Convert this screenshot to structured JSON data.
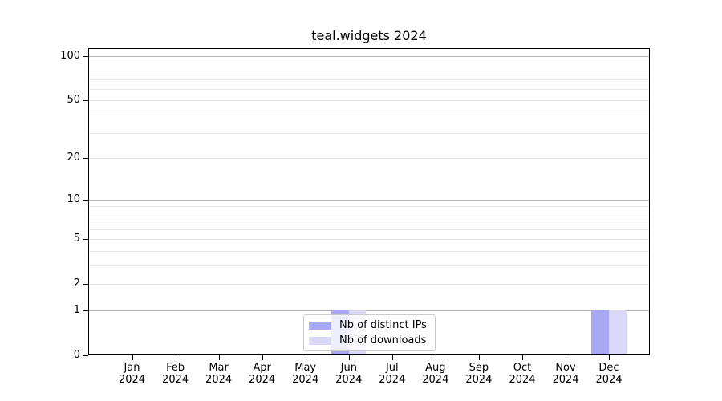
{
  "chart_data": {
    "type": "bar",
    "title": "teal.widgets 2024",
    "categories": [
      "Jan",
      "Feb",
      "Mar",
      "Apr",
      "May",
      "Jun",
      "Jul",
      "Aug",
      "Sep",
      "Oct",
      "Nov",
      "Dec"
    ],
    "year_label": "2024",
    "series": [
      {
        "name": "Nb of distinct IPs",
        "color": "#a8a8f5",
        "values": [
          0,
          0,
          0,
          0,
          0,
          1,
          0,
          0,
          0,
          0,
          0,
          1
        ]
      },
      {
        "name": "Nb of downloads",
        "color": "#d9d9f7",
        "values": [
          0,
          0,
          0,
          0,
          0,
          1,
          0,
          0,
          0,
          0,
          0,
          1
        ]
      }
    ],
    "xlabel": "",
    "ylabel": "",
    "yscale": "log1p",
    "ylim": [
      0,
      113
    ],
    "y_ticks": [
      100,
      50,
      20,
      10,
      5,
      2,
      1,
      0
    ],
    "y_major_gridlines": [
      100,
      10,
      1
    ],
    "y_minor_gridlines": [
      90,
      80,
      70,
      60,
      50,
      40,
      30,
      20,
      9,
      8,
      7,
      6,
      5,
      4,
      3,
      2
    ],
    "grid": true,
    "legend_position": "lower center"
  },
  "colors": {
    "bar_distinct_ips": "#a8a8f5",
    "bar_downloads": "#d9d9f7",
    "major_gridline": "#b0b0b0",
    "minor_gridline": "#e8e8e8",
    "axis": "#000000",
    "legend_border": "#cccccc",
    "background": "#ffffff"
  }
}
